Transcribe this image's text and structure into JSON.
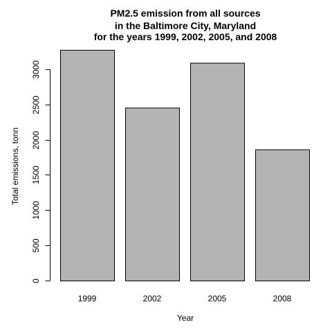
{
  "chart_data": {
    "type": "bar",
    "title_lines": [
      "PM2.5 emission from all sources",
      "in the Baltimore City, Maryland",
      "for the years 1999, 2002, 2005, and 2008"
    ],
    "xlabel": "Year",
    "ylabel": "Total emissions, tonn",
    "categories": [
      "1999",
      "2002",
      "2005",
      "2008"
    ],
    "values": [
      3274,
      2454,
      3091,
      1862
    ],
    "ylim": [
      0,
      3274
    ],
    "yticks": [
      0,
      500,
      1000,
      1500,
      2000,
      2500,
      3000
    ],
    "ytick_labels": [
      "0",
      "500",
      "1000",
      "1500",
      "2000",
      "2500",
      "3000"
    ],
    "grid": false,
    "colors": {
      "bar_fill": "#b3b3b3",
      "bar_stroke": "#000000"
    }
  }
}
